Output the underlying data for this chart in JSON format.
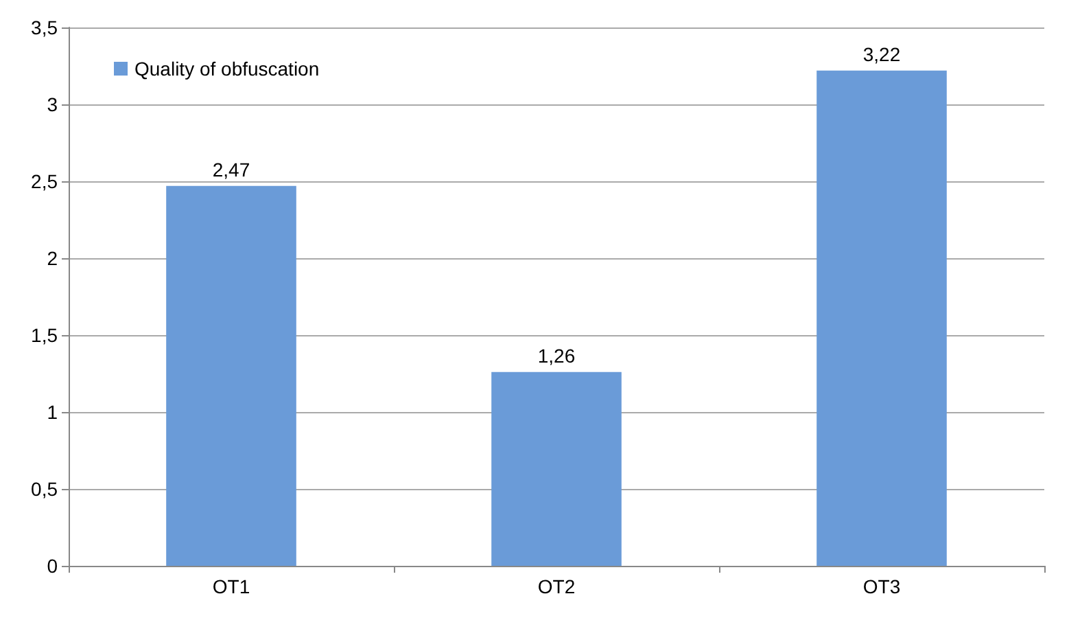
{
  "chart_data": {
    "type": "bar",
    "categories": [
      "OT1",
      "OT2",
      "OT3"
    ],
    "series": [
      {
        "name": "Quality of obfuscation",
        "color": "#6a9bd8",
        "values": [
          2.47,
          1.26,
          3.22
        ],
        "value_labels": [
          "2,47",
          "1,26",
          "3,22"
        ]
      }
    ],
    "ylim": [
      0,
      3.5
    ],
    "yticks": [
      0,
      {
        "value": 0.5,
        "label": "0,5"
      },
      1,
      {
        "value": 1.5,
        "label": "1,5"
      },
      2,
      {
        "value": 2.5,
        "label": "2,5"
      },
      3,
      {
        "value": 3.5,
        "label": "3,5"
      }
    ],
    "grid": "y",
    "legend": "top left"
  }
}
